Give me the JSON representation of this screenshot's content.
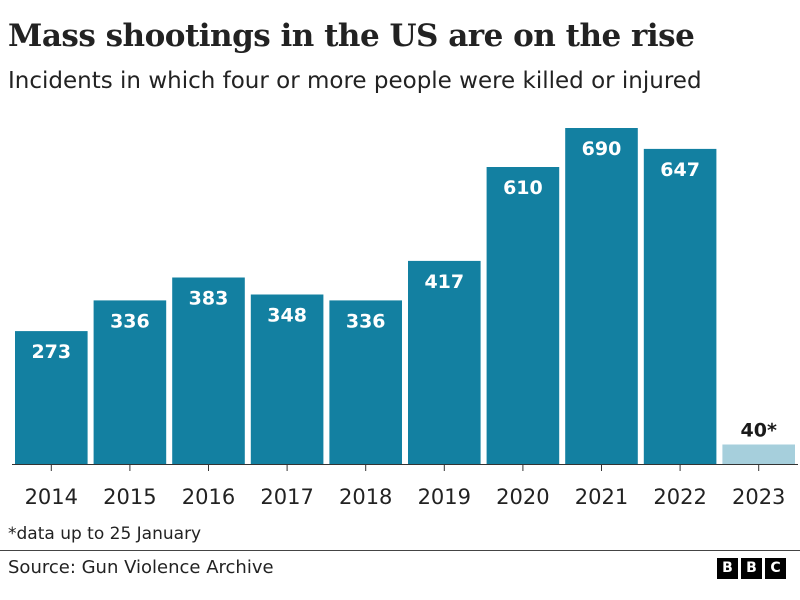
{
  "chart_data": {
    "type": "bar",
    "title": "Mass shootings in the US are on the rise",
    "subtitle": "Incidents in which four or more people were killed or injured",
    "categories": [
      "2014",
      "2015",
      "2016",
      "2017",
      "2018",
      "2019",
      "2020",
      "2021",
      "2022",
      "2023"
    ],
    "values": [
      273,
      336,
      383,
      348,
      336,
      417,
      610,
      690,
      647,
      40
    ],
    "value_labels": [
      "273",
      "336",
      "383",
      "348",
      "336",
      "417",
      "610",
      "690",
      "647",
      "40*"
    ],
    "xlabel": "",
    "ylabel": "",
    "ylim": [
      0,
      690
    ],
    "grid": false,
    "legend": "none",
    "bar_color": "#1380A1",
    "highlight_color": "#A6CFDC",
    "highlight_index": 9
  },
  "footnote": "*data up to 25 January",
  "source": "Source: Gun Violence Archive",
  "brand": {
    "letters": [
      "B",
      "B",
      "C"
    ]
  }
}
